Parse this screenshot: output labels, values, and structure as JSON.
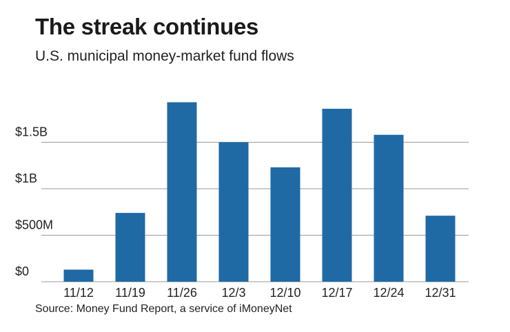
{
  "chart_data": {
    "type": "bar",
    "title": "The streak continues",
    "subtitle": "U.S. municipal money-market fund flows",
    "source": "Source: Money Fund Report, a service of iMoneyNet",
    "xlabel": "",
    "ylabel": "",
    "categories": [
      "11/12",
      "11/19",
      "11/26",
      "12/3",
      "12/10",
      "12/17",
      "12/24",
      "12/31"
    ],
    "values": [
      130000000,
      740000000,
      1930000000,
      1500000000,
      1230000000,
      1860000000,
      1580000000,
      710000000
    ],
    "ylim": [
      0,
      2000000000
    ],
    "yticks": [
      {
        "value": 0,
        "label": "$0"
      },
      {
        "value": 500000000,
        "label": "$500M"
      },
      {
        "value": 1000000000,
        "label": "$1B"
      },
      {
        "value": 1500000000,
        "label": "$1.5B"
      }
    ],
    "grid": true,
    "colors": {
      "bar": "#1f6aa5",
      "grid": "#9a9a9a"
    }
  }
}
